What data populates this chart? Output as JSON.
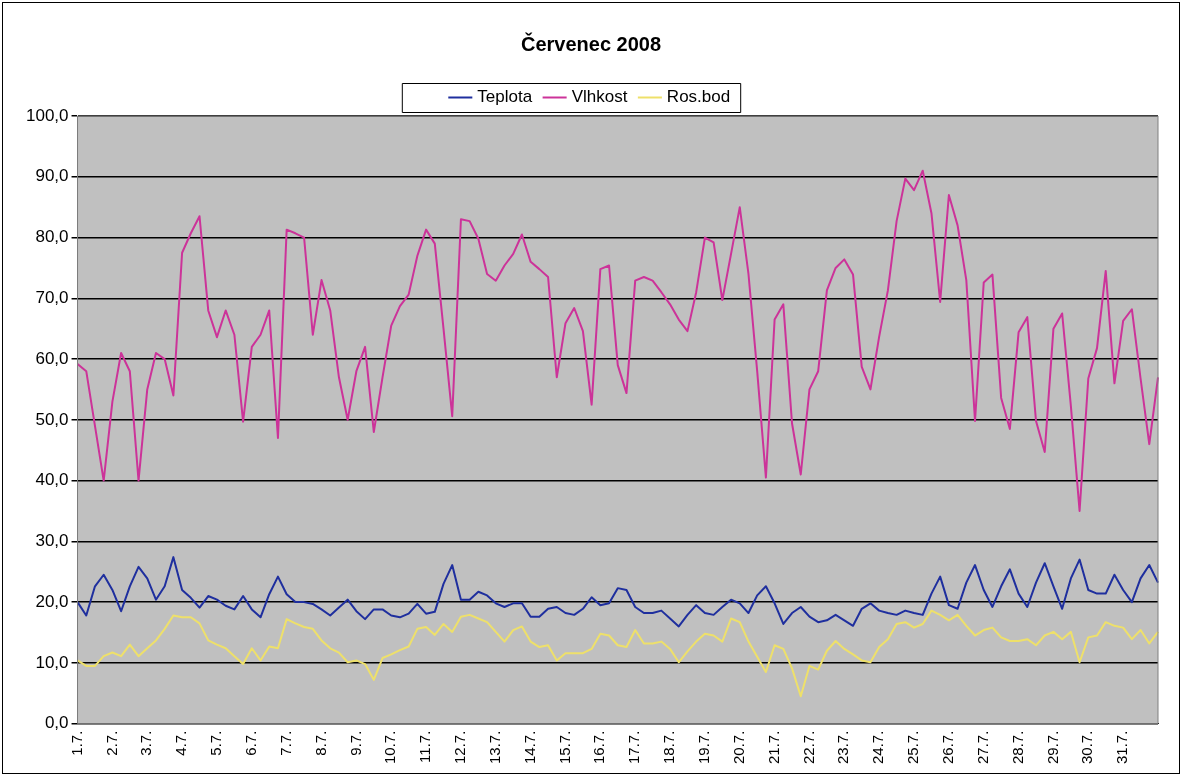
{
  "chart_data": {
    "type": "line",
    "title": "Červenec 2008",
    "categories": [
      "1.7.",
      null,
      null,
      null,
      "2.7.",
      null,
      null,
      null,
      "3.7.",
      null,
      null,
      null,
      "4.7.",
      null,
      null,
      null,
      "5.7.",
      null,
      null,
      null,
      "6.7.",
      null,
      null,
      null,
      "7.7.",
      null,
      null,
      null,
      "8.7.",
      null,
      null,
      null,
      "9.7.",
      null,
      null,
      null,
      "10.7.",
      null,
      null,
      null,
      "11.7.",
      null,
      null,
      null,
      "12.7.",
      null,
      null,
      null,
      "13.7.",
      null,
      null,
      null,
      "14.7.",
      null,
      null,
      null,
      "15.7.",
      null,
      null,
      null,
      "16.7.",
      null,
      null,
      null,
      "17.7.",
      null,
      null,
      null,
      "18.7.",
      null,
      null,
      null,
      "19.7.",
      null,
      null,
      null,
      "20.7.",
      null,
      null,
      null,
      "21.7.",
      null,
      null,
      null,
      "22.7.",
      null,
      null,
      null,
      "23.7.",
      null,
      null,
      null,
      "24.7.",
      null,
      null,
      null,
      "25.7.",
      null,
      null,
      null,
      "26.7.",
      null,
      null,
      null,
      "27.7.",
      null,
      null,
      null,
      "28.7.",
      null,
      null,
      null,
      "29.7.",
      null,
      null,
      null,
      "30.7.",
      null,
      null,
      null,
      "31.7.",
      null,
      null,
      null,
      null
    ],
    "series": [
      {
        "name": "Teplota",
        "color": "#1f2f9e",
        "values": [
          20,
          17.8,
          22.6,
          24.5,
          22,
          18.5,
          22.6,
          25.8,
          23.9,
          20.4,
          22.6,
          27.4,
          22,
          20.7,
          19.1,
          21,
          20.4,
          19.4,
          18.8,
          21,
          18.8,
          17.5,
          21.3,
          24.2,
          21.3,
          20,
          20,
          19.7,
          18.8,
          17.8,
          19.1,
          20.4,
          18.5,
          17.2,
          18.8,
          18.8,
          17.8,
          17.5,
          18.1,
          19.7,
          18.1,
          18.4,
          23,
          26.1,
          20.4,
          20.4,
          21.7,
          21.1,
          19.8,
          19.2,
          19.8,
          19.8,
          17.6,
          17.6,
          18.9,
          19.2,
          18.2,
          17.9,
          18.9,
          20.8,
          19.5,
          19.8,
          22.3,
          22,
          19.2,
          18.2,
          18.2,
          18.6,
          17.3,
          16,
          17.9,
          19.5,
          18.2,
          17.9,
          19.2,
          20.4,
          19.8,
          18.2,
          21.1,
          22.6,
          19.8,
          16.4,
          18.2,
          19.2,
          17.6,
          16.7,
          17,
          17.9,
          17,
          16.1,
          18.9,
          19.8,
          18.6,
          18.2,
          17.9,
          18.6,
          18.2,
          17.9,
          21.4,
          24.2,
          19.5,
          18.9,
          23.2,
          26.1,
          22,
          19.2,
          22.6,
          25.4,
          21.4,
          19.2,
          23.2,
          26.4,
          22.6,
          18.9,
          23.9,
          27,
          22,
          21.4,
          21.4,
          24.5,
          22,
          20,
          23.9,
          26.1,
          23.2
        ]
      },
      {
        "name": "Vlhkost",
        "color": "#cc3399",
        "values": [
          59.2,
          58,
          49,
          40,
          53,
          61,
          58,
          40,
          55,
          61,
          60,
          54,
          77.5,
          80.7,
          83.5,
          68,
          63.6,
          68,
          64,
          49.7,
          62,
          64,
          68,
          47,
          81.3,
          80.7,
          80,
          64,
          73,
          68,
          57,
          50,
          58,
          62,
          48,
          57,
          65.5,
          68.7,
          70.6,
          77,
          81.3,
          79,
          65,
          50.6,
          83,
          82.7,
          79.8,
          74,
          72.9,
          75.4,
          77.3,
          80.5,
          76,
          74.8,
          73.5,
          57,
          65.9,
          68.4,
          64.6,
          52.5,
          74.8,
          75.4,
          59,
          54.4,
          72.9,
          73.5,
          72.9,
          71,
          69,
          66.5,
          64.6,
          71,
          80,
          79.2,
          69.7,
          77.3,
          85,
          74,
          58,
          40.5,
          66.5,
          69,
          49.4,
          41,
          55,
          58,
          71.3,
          75,
          76.4,
          73.9,
          58.7,
          55,
          63.7,
          71.3,
          82.7,
          89.7,
          87.8,
          91,
          84,
          69.4,
          87,
          82,
          73,
          49.8,
          72.6,
          73.9,
          53.6,
          48.5,
          64.4,
          66.9,
          49.8,
          44.7,
          65,
          67.5,
          52.3,
          35,
          56.8,
          61.8,
          74.5,
          56,
          66.3,
          68.2,
          56.8,
          46,
          57
        ]
      },
      {
        "name": "Ros.bod",
        "color": "#eee06a",
        "values": [
          10.4,
          9.5,
          9.5,
          11.1,
          11.7,
          11.1,
          13,
          11.1,
          12.4,
          13.7,
          15.6,
          17.8,
          17.5,
          17.5,
          16.5,
          13.7,
          13,
          12.4,
          11.1,
          9.8,
          12.4,
          10.4,
          12.7,
          12.4,
          17.2,
          16.5,
          15.9,
          15.6,
          13.7,
          12.4,
          11.7,
          10.1,
          10.4,
          9.8,
          7.2,
          10.8,
          11.4,
          12.1,
          12.7,
          15.6,
          15.9,
          14.6,
          16.4,
          15.1,
          17.6,
          17.9,
          17.3,
          16.7,
          15.1,
          13.5,
          15.4,
          16,
          13.5,
          12.6,
          12.9,
          10.4,
          11.6,
          11.6,
          11.6,
          12.3,
          14.8,
          14.5,
          12.9,
          12.6,
          15.4,
          13.2,
          13.2,
          13.5,
          12.3,
          10.1,
          11.9,
          13.5,
          14.8,
          14.5,
          13.5,
          17.3,
          16.7,
          13.5,
          11,
          8.5,
          12.9,
          12.3,
          9.1,
          4.5,
          9.5,
          8.9,
          12,
          13.6,
          12.3,
          11.4,
          10.4,
          10.1,
          12.6,
          13.9,
          16.4,
          16.7,
          15.8,
          16.4,
          18.6,
          17.9,
          17,
          17.9,
          16.1,
          14.5,
          15.4,
          15.8,
          14.2,
          13.6,
          13.6,
          13.9,
          12.9,
          14.5,
          15.1,
          13.9,
          15.1,
          10.1,
          14.2,
          14.5,
          16.7,
          16.1,
          15.8,
          13.9,
          15.4,
          13.2,
          15.1
        ]
      }
    ],
    "ylim": [
      0,
      100
    ],
    "yticks": [
      {
        "value": 0,
        "label": "0,0"
      },
      {
        "value": 10,
        "label": "10,0"
      },
      {
        "value": 20,
        "label": "20,0"
      },
      {
        "value": 30,
        "label": "30,0"
      },
      {
        "value": 40,
        "label": "40,0"
      },
      {
        "value": 50,
        "label": "50,0"
      },
      {
        "value": 60,
        "label": "60,0"
      },
      {
        "value": 70,
        "label": "70,0"
      },
      {
        "value": 80,
        "label": "80,0"
      },
      {
        "value": 90,
        "label": "90,0"
      },
      {
        "value": 100,
        "label": "100,0"
      }
    ],
    "grid": "y",
    "legend": "top",
    "marker": "none",
    "line_style": "solid"
  }
}
